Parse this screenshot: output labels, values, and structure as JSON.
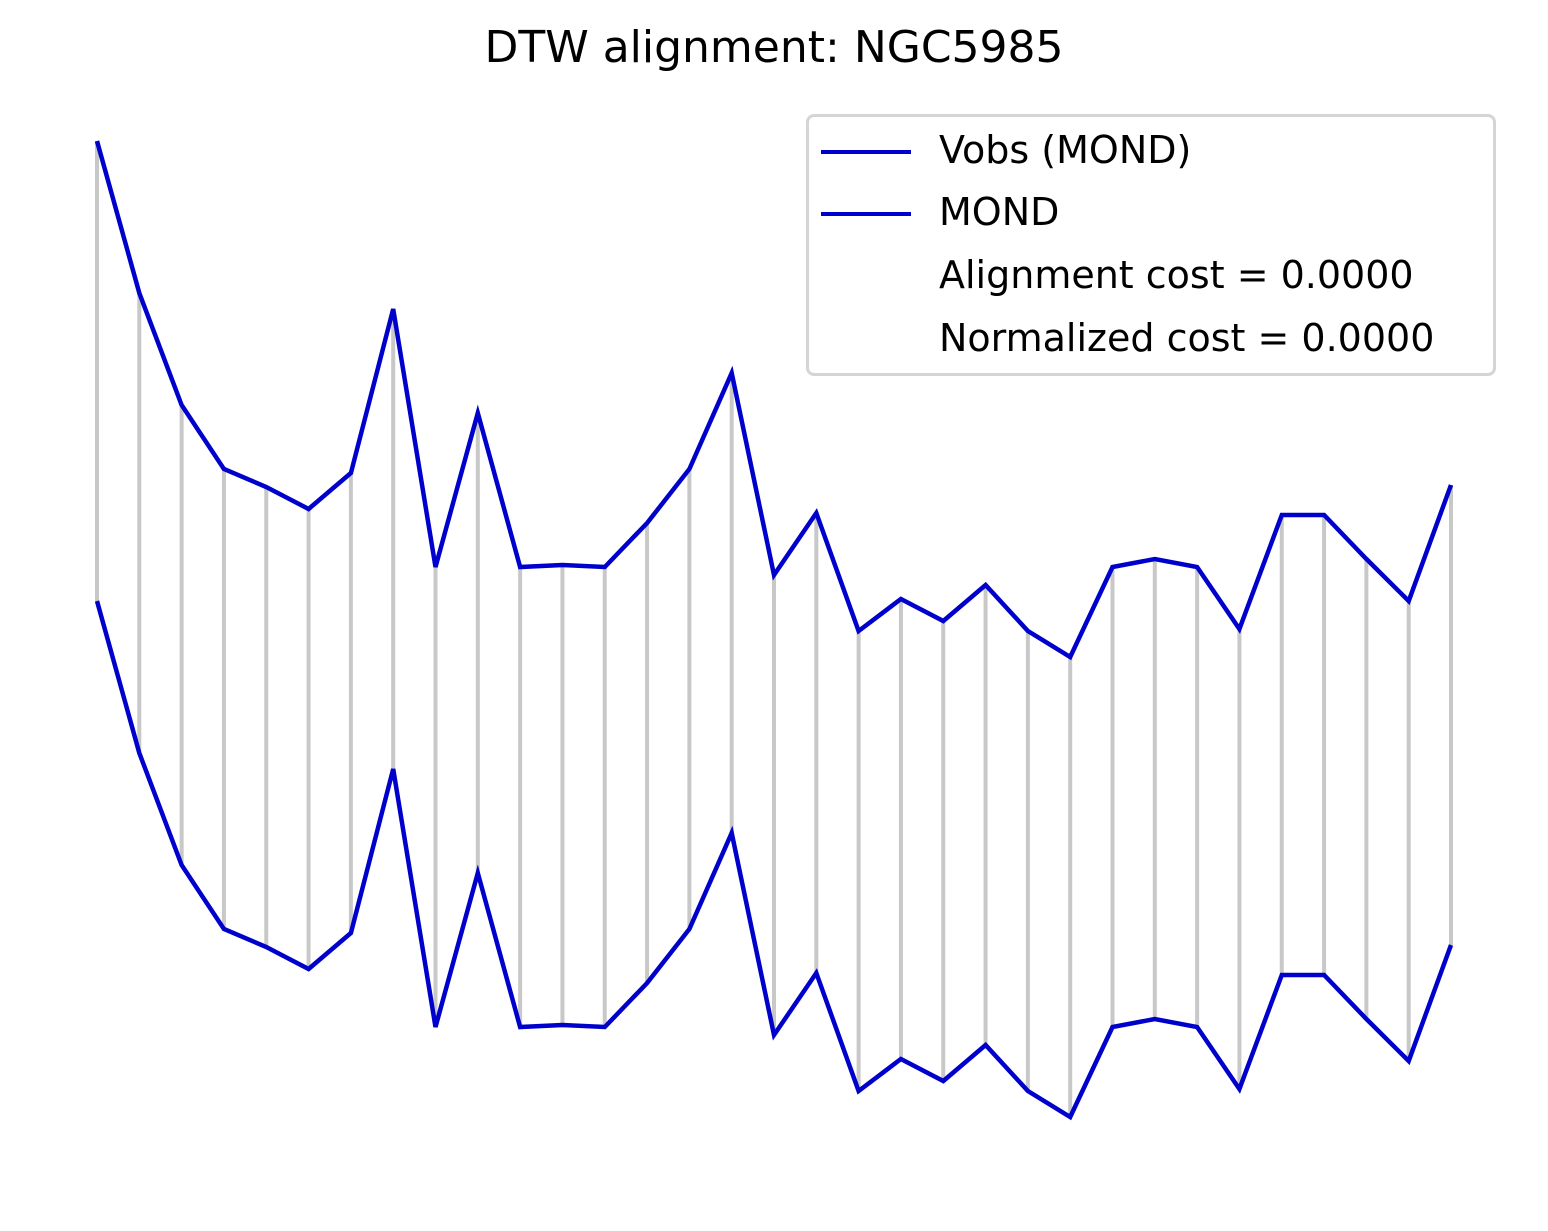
{
  "chart_data": {
    "type": "line",
    "title": "DTW alignment: NGC5985",
    "xlabel": "",
    "ylabel": "",
    "axes_visible": false,
    "grid": false,
    "legend_position": "top-right",
    "connector_color": "#c8c8c8",
    "series": [
      {
        "name": "Vobs (MOND)",
        "color": "#0000cc",
        "offset": "upper",
        "values": [
          2.3,
          1.54,
          0.98,
          0.66,
          0.57,
          0.46,
          0.64,
          1.46,
          0.17,
          0.94,
          0.17,
          0.18,
          0.17,
          0.39,
          0.66,
          1.14,
          0.13,
          0.44,
          -0.15,
          0.01,
          -0.1,
          0.08,
          -0.15,
          -0.28,
          0.17,
          0.21,
          0.17,
          -0.14,
          0.43,
          0.43,
          0.21,
          0.0,
          0.58
        ]
      },
      {
        "name": "MOND",
        "color": "#0000cc",
        "offset": "lower",
        "values": [
          2.3,
          1.54,
          0.98,
          0.66,
          0.57,
          0.46,
          0.64,
          1.46,
          0.17,
          0.94,
          0.17,
          0.18,
          0.17,
          0.39,
          0.66,
          1.14,
          0.13,
          0.44,
          -0.15,
          0.01,
          -0.1,
          0.08,
          -0.15,
          -0.28,
          0.17,
          0.21,
          0.17,
          -0.14,
          0.43,
          0.43,
          0.21,
          0.0,
          0.58
        ]
      }
    ],
    "annotations": [
      "Alignment cost = 0.0000",
      "Normalized cost = 0.0000"
    ]
  }
}
